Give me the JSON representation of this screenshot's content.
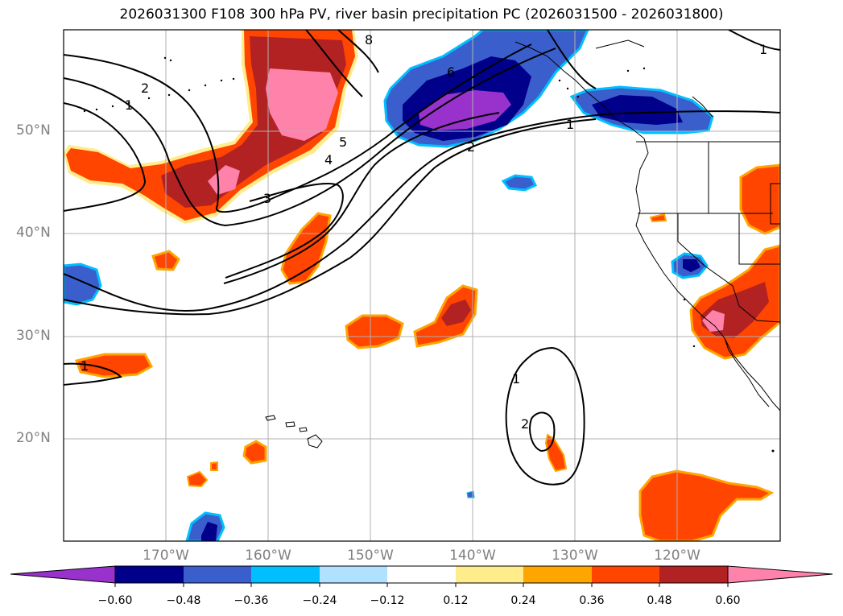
{
  "title": "2026031300 F108 300 hPa PV, river basin precipitation PC (2026031500 - 2026031800)",
  "lat_labels": [
    "50°N",
    "40°N",
    "30°N",
    "20°N"
  ],
  "lon_labels": [
    "170°W",
    "160°W",
    "150°W",
    "140°W",
    "130°W",
    "120°W"
  ],
  "colorbar": {
    "colors": [
      "#9932cc",
      "#00008b",
      "#3a5fcd",
      "#00bfff",
      "#b0e2ff",
      "#ffffff",
      "#ffec8b",
      "#ffa500",
      "#ff4500",
      "#b22222",
      "#ff82ab"
    ],
    "ticks": [
      "−0.60",
      "−0.48",
      "−0.36",
      "−0.24",
      "−0.12",
      "0.12",
      "0.24",
      "0.36",
      "0.48",
      "0.60"
    ]
  },
  "contour_labels": [
    "8",
    "6",
    "5",
    "4",
    "3",
    "2",
    "2",
    "1",
    "1",
    "1",
    "1",
    "1",
    "2"
  ],
  "colors": {
    "frame": "#000000",
    "grid": "#b0b0b0",
    "coast": "#000000"
  }
}
